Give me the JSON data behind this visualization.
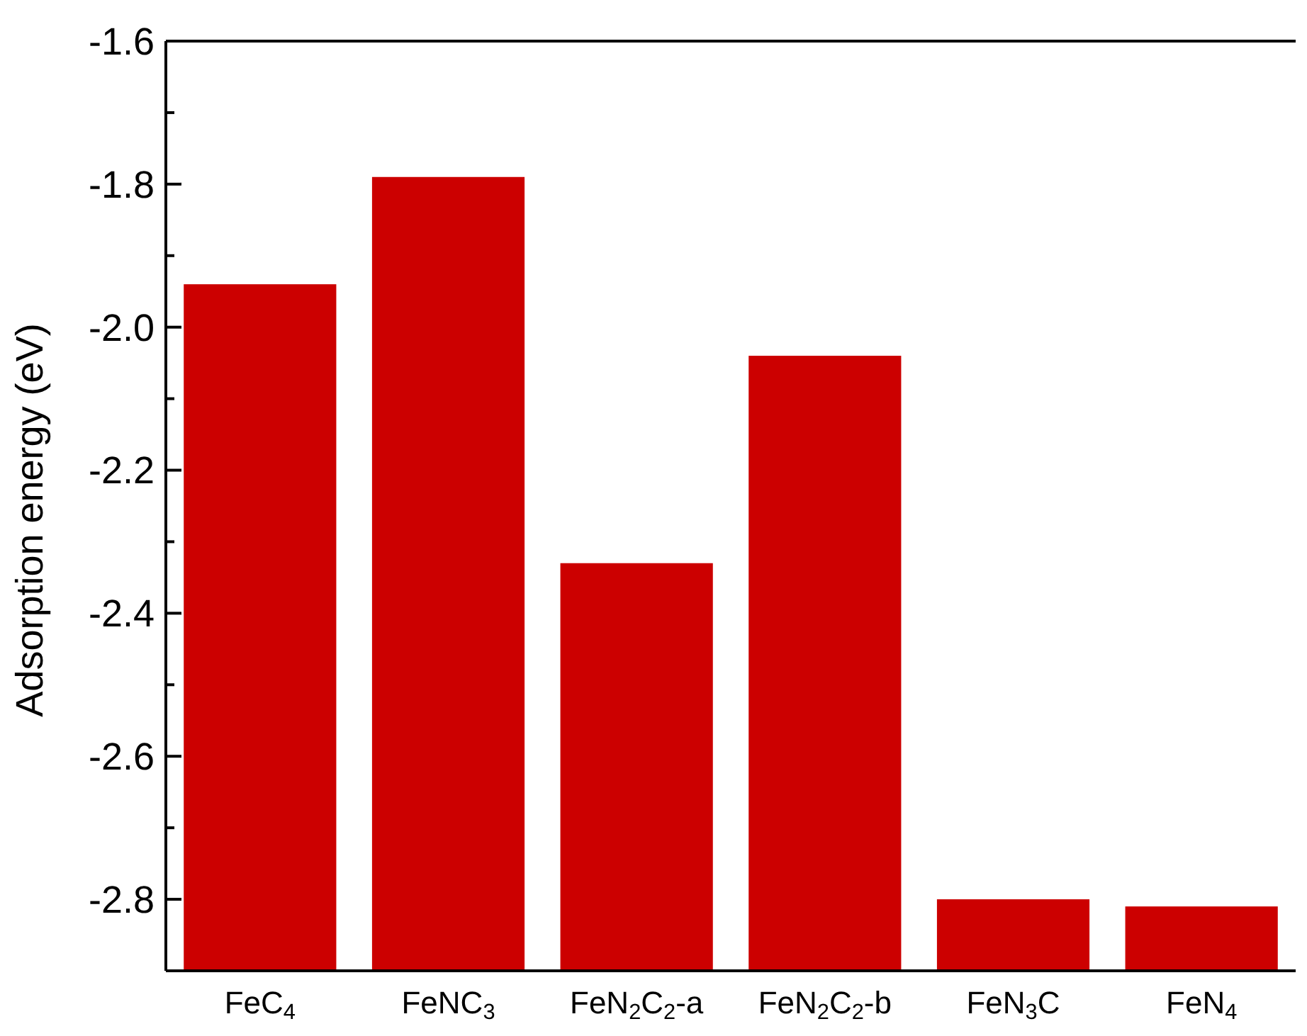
{
  "chart_data": {
    "type": "bar",
    "ylabel": "Adsorption energy (eV)",
    "categories": [
      "FeC$_{4}$",
      "FeNC$_{3}$",
      "FeN$_{2}$C$_{2}$-a",
      "FeN$_{2}$C$_{2}$-b",
      "FeN$_{3}$C",
      "FeN$_{4}$"
    ],
    "base": [
      -2.9,
      -2.9,
      -2.9,
      -2.9,
      -2.9,
      -2.9
    ],
    "values": [
      0.96,
      1.11,
      0.57,
      0.86,
      0.1,
      0.09
    ],
    "color": "#cc0000",
    "ylim": [
      -2.9,
      -1.6
    ],
    "yticks": [
      {
        "value": -1.6,
        "label": "-1.6"
      },
      {
        "value": -1.7,
        "label": null
      },
      {
        "value": -1.8,
        "label": "-1.8"
      },
      {
        "value": -1.9,
        "label": null
      },
      {
        "value": -2.0,
        "label": "-2.0"
      },
      {
        "value": -2.1,
        "label": null
      },
      {
        "value": -2.2,
        "label": "-2.2"
      },
      {
        "value": -2.3,
        "label": null
      },
      {
        "value": -2.4,
        "label": "-2.4"
      },
      {
        "value": -2.5,
        "label": null
      },
      {
        "value": -2.6,
        "label": "-2.6"
      },
      {
        "value": -2.7,
        "label": null
      },
      {
        "value": -2.8,
        "label": "-2.8"
      }
    ],
    "grid": false
  }
}
